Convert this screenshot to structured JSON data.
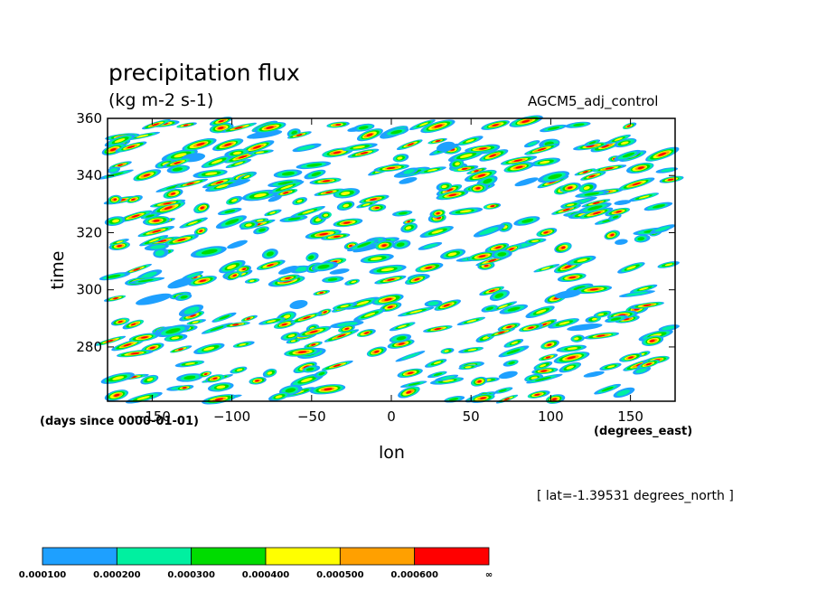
{
  "title": "precipitation flux",
  "units": "(kg m-2 s-1)",
  "dataset": "AGCM5_adj_control",
  "time_units": "(days since 0000-01-01)",
  "lon_units": "(degrees_east)",
  "lat_note": "[ lat=-1.39531 degrees_north ]",
  "chart_data": {
    "type": "heatmap",
    "xlabel": "lon",
    "ylabel": "time",
    "xlim": [
      -178,
      178
    ],
    "ylim": [
      261,
      360
    ],
    "x_ticks": [
      -150,
      -100,
      -50,
      0,
      50,
      100,
      150
    ],
    "y_ticks": [
      280,
      300,
      320,
      340,
      360
    ],
    "y_tick_labels": [
      "280",
      "300",
      "320",
      "340",
      "360"
    ],
    "x_tick_labels": [
      "−150",
      "−100",
      "−50",
      "0",
      "50",
      "100",
      "150"
    ],
    "colorbar": {
      "levels": [
        "0.000100",
        "0.000200",
        "0.000300",
        "0.000400",
        "0.000500",
        "0.000600",
        "∞"
      ],
      "colors": [
        "#1ea0ff",
        "#00f0a0",
        "#00dc00",
        "#ffff00",
        "#ffa000",
        "#ff0000"
      ]
    }
  }
}
